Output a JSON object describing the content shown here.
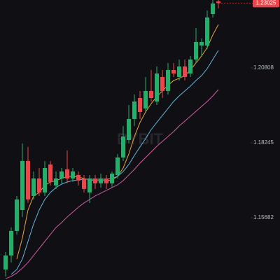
{
  "chart_data": {
    "type": "candlestick",
    "watermark": "BYBIT",
    "open": [
      1.1391,
      1.14389,
      1.15228,
      1.15946,
      1.17623,
      1.16425,
      1.17024,
      1.16545,
      1.17503,
      1.16785,
      1.17024,
      1.17335,
      1.17024,
      1.17144,
      1.17024,
      1.16545,
      1.17024,
      1.16856,
      1.17024,
      1.16856,
      1.17144,
      1.17742,
      1.18341,
      1.1906,
      1.19778,
      1.19419,
      1.20018,
      1.19658,
      1.20497,
      1.20018,
      1.20736,
      1.20497,
      1.20856,
      1.20616,
      1.21095,
      1.21574,
      1.21574,
      1.22652,
      1.23083
    ],
    "high": [
      1.14509,
      1.15347,
      1.16425,
      1.18221,
      1.18102,
      1.17264,
      1.17383,
      1.17623,
      1.17623,
      1.17264,
      1.17383,
      1.17982,
      1.17383,
      1.17264,
      1.17144,
      1.17144,
      1.17144,
      1.17191,
      1.17144,
      1.17264,
      1.17862,
      1.1882,
      1.19539,
      1.19898,
      1.20018,
      1.20497,
      1.20736,
      1.20856,
      1.20736,
      1.20976,
      1.20976,
      1.21095,
      1.21095,
      1.21215,
      1.22173,
      1.21814,
      1.22772,
      1.23131,
      1.23131
    ],
    "low": [
      1.13671,
      1.1415,
      1.15108,
      1.15707,
      1.16186,
      1.16306,
      1.16425,
      1.16425,
      1.16785,
      1.16665,
      1.16856,
      1.16856,
      1.16904,
      1.16785,
      1.16545,
      1.16186,
      1.16665,
      1.16713,
      1.16665,
      1.16713,
      1.17024,
      1.17623,
      1.18221,
      1.1882,
      1.1906,
      1.19299,
      1.19658,
      1.19539,
      1.19778,
      1.19898,
      1.20497,
      1.20377,
      1.20377,
      1.20497,
      1.20976,
      1.21215,
      1.21455,
      1.22532,
      1.22844
    ],
    "close": [
      1.14389,
      1.15228,
      1.16306,
      1.17623,
      1.16306,
      1.17024,
      1.16545,
      1.17383,
      1.16904,
      1.17024,
      1.17264,
      1.17024,
      1.17264,
      1.16952,
      1.16665,
      1.17024,
      1.16856,
      1.17024,
      1.16856,
      1.17191,
      1.17742,
      1.18461,
      1.1906,
      1.19658,
      1.19299,
      1.20018,
      1.19778,
      1.20616,
      1.20018,
      1.20736,
      1.20616,
      1.20856,
      1.20497,
      1.21095,
      1.21694,
      1.21694,
      1.22532,
      1.23011,
      1.23025
    ],
    "up_color": "#20b26c",
    "down_color": "#ef454a",
    "series": [
      {
        "color": "#e9a23b",
        "values": [
          null,
          null,
          1.1427,
          1.14988,
          1.15946,
          1.16425,
          1.16545,
          1.16785,
          1.16904,
          1.16952,
          1.17024,
          1.17096,
          1.17096,
          1.17072,
          1.17024,
          1.16976,
          1.16952,
          1.16952,
          1.16952,
          1.16976,
          1.17096,
          1.17383,
          1.17862,
          1.18461,
          1.1894,
          1.19299,
          1.19586,
          1.19826,
          1.20018,
          1.20209,
          1.20377,
          1.20449,
          1.20544,
          1.20736,
          1.20976,
          1.21215,
          1.21502,
          1.21934,
          1.22293
        ]
      },
      {
        "color": "#64b4d8",
        "values": [
          null,
          1.13743,
          1.1391,
          1.1427,
          1.14869,
          1.15467,
          1.15946,
          1.16306,
          1.16545,
          1.16713,
          1.16832,
          1.16904,
          1.16952,
          1.16976,
          1.17,
          1.17,
          1.17,
          1.17,
          1.17,
          1.17024,
          1.17096,
          1.17264,
          1.17503,
          1.17814,
          1.18102,
          1.18389,
          1.187,
          1.1894,
          1.19179,
          1.19419,
          1.19658,
          1.1985,
          1.20018,
          1.20185,
          1.20377,
          1.20544,
          1.20784,
          1.21095,
          1.21407
        ]
      },
      {
        "color": "#cf5aa3",
        "values": [
          1.13599,
          1.13671,
          1.13791,
          1.13958,
          1.1415,
          1.14389,
          1.14629,
          1.14869,
          1.15108,
          1.15347,
          1.15515,
          1.15707,
          1.15874,
          1.16042,
          1.16186,
          1.16306,
          1.16425,
          1.16521,
          1.16617,
          1.16713,
          1.16808,
          1.16952,
          1.17144,
          1.17335,
          1.17551,
          1.17742,
          1.17934,
          1.18125,
          1.18293,
          1.18461,
          1.18628,
          1.1882,
          1.18988,
          1.19155,
          1.19323,
          1.19491,
          1.19658,
          1.1985,
          1.20065
        ]
      }
    ],
    "current_price": 1.23025,
    "price_label_color": "#ef454a",
    "ylim": [
      1.1355,
      1.23131
    ],
    "yticks": [
      1.15682,
      1.18245,
      1.20808
    ]
  }
}
